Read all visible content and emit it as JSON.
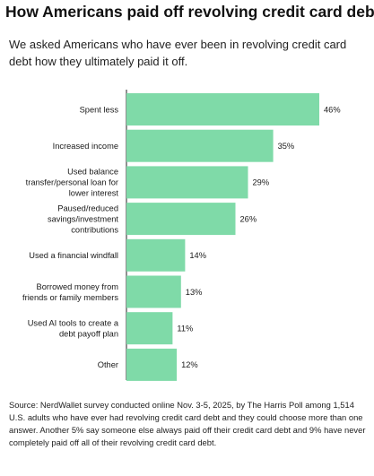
{
  "title": "How Americans paid off revolving credit card debt",
  "subtitle": "We asked Americans who have ever been in revolving credit card debt how they ultimately paid it off.",
  "source": "Source: NerdWallet survey conducted online Nov. 3-5, 2025, by The Harris Poll among 1,514 U.S. adults who have ever had revolving credit card debt and they could choose more than one answer. Another 5% say someone else always paid off their credit card debt and 9% have never completely paid off all of their revolving credit card debt.",
  "colors": {
    "bar": "#7fdaa8"
  },
  "chart_data": {
    "type": "bar",
    "orientation": "horizontal",
    "categories": [
      [
        "Spent less"
      ],
      [
        "Increased income"
      ],
      [
        "Used balance",
        "transfer/personal loan for",
        "lower interest"
      ],
      [
        "Paused/reduced",
        "savings/investment",
        "contributions"
      ],
      [
        "Used a financial windfall"
      ],
      [
        "Borrowed money from",
        "friends or family members"
      ],
      [
        "Used AI tools to create a",
        "debt payoff plan"
      ],
      [
        "Other"
      ]
    ],
    "values": [
      46,
      35,
      29,
      26,
      14,
      13,
      11,
      12
    ],
    "value_labels": [
      "46%",
      "35%",
      "29%",
      "26%",
      "14%",
      "13%",
      "11%",
      "12%"
    ],
    "unit": "%",
    "xlim": [
      0,
      46
    ],
    "grid": false,
    "legend": "none"
  }
}
